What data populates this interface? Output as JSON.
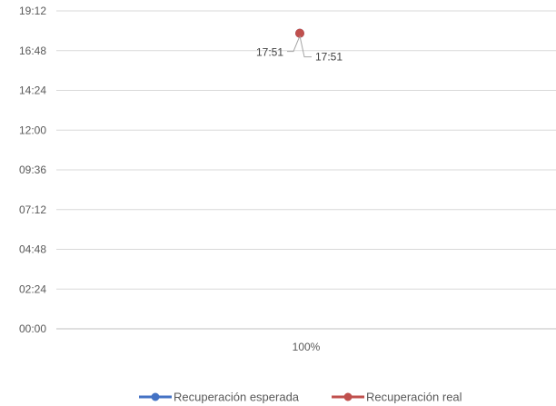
{
  "chart_data": {
    "type": "line",
    "categories": [
      "100%"
    ],
    "y_unit": "hh:mm",
    "y_ticks": [
      "00:00",
      "02:24",
      "04:48",
      "07:12",
      "09:36",
      "12:00",
      "14:24",
      "16:48",
      "19:12"
    ],
    "ylim": [
      "00:00",
      "19:12"
    ],
    "grid": true,
    "legend_position": "bottom",
    "series": [
      {
        "name": "Recuperación esperada",
        "values": [
          "17:51"
        ],
        "data_labels": [
          "17:51"
        ],
        "color": "#4472C4"
      },
      {
        "name": "Recuperación real",
        "values": [
          "17:51"
        ],
        "data_labels": [
          "17:51"
        ],
        "color": "#C0504D"
      }
    ],
    "colors": {
      "gridline": "#d9d9d9",
      "axis": "#bfbfbf",
      "text": "#595959"
    }
  }
}
